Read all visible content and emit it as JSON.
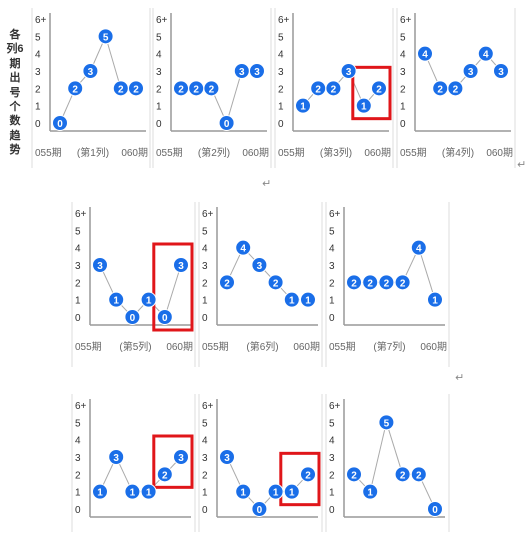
{
  "side_label": "各列6期出号个数趋势",
  "para_marks": [
    "↵",
    "↵",
    "↵"
  ],
  "chart_data": [
    {
      "type": "line",
      "y_ticks": [
        "0",
        "1",
        "2",
        "3",
        "4",
        "5",
        "6+"
      ],
      "ylim": [
        0,
        6
      ],
      "x_labels": [
        "055期",
        "(第1列)",
        "060期"
      ],
      "values": [
        0,
        2,
        3,
        5,
        2,
        2
      ],
      "highlight": null
    },
    {
      "type": "line",
      "y_ticks": [
        "0",
        "1",
        "2",
        "3",
        "4",
        "5",
        "6+"
      ],
      "ylim": [
        0,
        6
      ],
      "x_labels": [
        "055期",
        "(第2列)",
        "060期"
      ],
      "values": [
        2,
        2,
        2,
        0,
        3,
        3
      ],
      "highlight": null
    },
    {
      "type": "line",
      "y_ticks": [
        "0",
        "1",
        "2",
        "3",
        "4",
        "5",
        "6+"
      ],
      "ylim": [
        0,
        6
      ],
      "x_labels": [
        "055期",
        "(第3列)",
        "060期"
      ],
      "values": [
        1,
        2,
        2,
        3,
        1,
        2
      ],
      "highlight": [
        4,
        5
      ]
    },
    {
      "type": "line",
      "y_ticks": [
        "0",
        "1",
        "2",
        "3",
        "4",
        "5",
        "6+"
      ],
      "ylim": [
        0,
        6
      ],
      "x_labels": [
        "055期",
        "(第4列)",
        "060期"
      ],
      "values": [
        4,
        2,
        2,
        3,
        4,
        3
      ],
      "highlight": null
    },
    {
      "type": "line",
      "y_ticks": [
        "0",
        "1",
        "2",
        "3",
        "4",
        "5",
        "6+"
      ],
      "ylim": [
        0,
        6
      ],
      "x_labels": [
        "055期",
        "(第5列)",
        "060期"
      ],
      "values": [
        3,
        1,
        0,
        1,
        0,
        3
      ],
      "highlight": [
        4,
        5
      ]
    },
    {
      "type": "line",
      "y_ticks": [
        "0",
        "1",
        "2",
        "3",
        "4",
        "5",
        "6+"
      ],
      "ylim": [
        0,
        6
      ],
      "x_labels": [
        "055期",
        "(第6列)",
        "060期"
      ],
      "values": [
        2,
        4,
        3,
        2,
        1,
        1
      ],
      "highlight": null
    },
    {
      "type": "line",
      "y_ticks": [
        "0",
        "1",
        "2",
        "3",
        "4",
        "5",
        "6+"
      ],
      "ylim": [
        0,
        6
      ],
      "x_labels": [
        "055期",
        "(第7列)",
        "060期"
      ],
      "values": [
        2,
        2,
        2,
        2,
        4,
        1
      ],
      "highlight": null
    },
    {
      "type": "line",
      "y_ticks": [
        "0",
        "1",
        "2",
        "3",
        "4",
        "5",
        "6+"
      ],
      "ylim": [
        0,
        6
      ],
      "x_labels": [
        "",
        "",
        ""
      ],
      "values": [
        1,
        3,
        1,
        1,
        2,
        3
      ],
      "highlight": [
        4,
        5
      ]
    },
    {
      "type": "line",
      "y_ticks": [
        "0",
        "1",
        "2",
        "3",
        "4",
        "5",
        "6+"
      ],
      "ylim": [
        0,
        6
      ],
      "x_labels": [
        "",
        "",
        ""
      ],
      "values": [
        3,
        1,
        0,
        1,
        1,
        2
      ],
      "highlight": [
        4,
        5
      ]
    },
    {
      "type": "line",
      "y_ticks": [
        "0",
        "1",
        "2",
        "3",
        "4",
        "5",
        "6+"
      ],
      "ylim": [
        0,
        6
      ],
      "x_labels": [
        "",
        "",
        ""
      ],
      "values": [
        2,
        1,
        5,
        2,
        2,
        0
      ],
      "highlight": null
    }
  ]
}
